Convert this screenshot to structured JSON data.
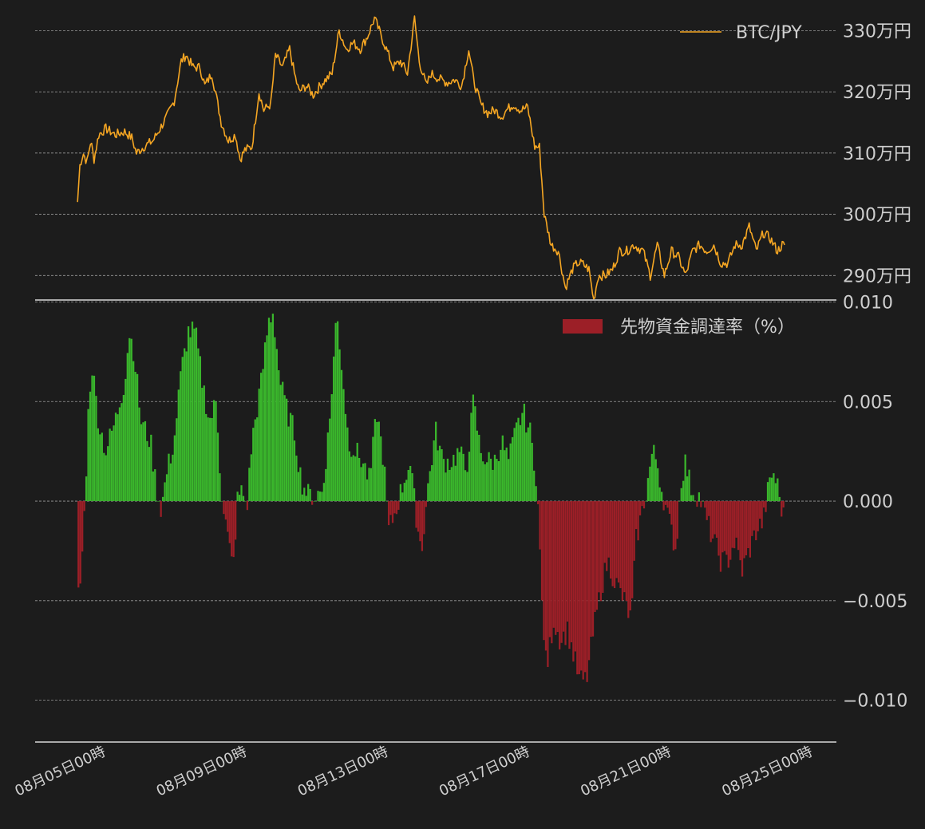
{
  "chart_data": [
    {
      "type": "line",
      "series": [
        {
          "name": "BTC/JPY",
          "color": "#f5a623",
          "anchors": [
            [
              0.0,
              3020000
            ],
            [
              0.05,
              3080000
            ],
            [
              0.12,
              3100000
            ],
            [
              0.2,
              3085000
            ],
            [
              0.28,
              3120000
            ],
            [
              0.35,
              3090000
            ],
            [
              0.45,
              3130000
            ],
            [
              0.6,
              3140000
            ],
            [
              0.8,
              3130000
            ],
            [
              1.0,
              3135000
            ],
            [
              1.15,
              3125000
            ],
            [
              1.25,
              3100000
            ],
            [
              1.4,
              3110000
            ],
            [
              1.6,
              3120000
            ],
            [
              1.75,
              3140000
            ],
            [
              1.9,
              3160000
            ],
            [
              2.05,
              3185000
            ],
            [
              2.2,
              3250000
            ],
            [
              2.3,
              3260000
            ],
            [
              2.45,
              3240000
            ],
            [
              2.6,
              3240000
            ],
            [
              2.7,
              3210000
            ],
            [
              2.85,
              3230000
            ],
            [
              3.05,
              3150000
            ],
            [
              3.2,
              3120000
            ],
            [
              3.35,
              3130000
            ],
            [
              3.45,
              3090000
            ],
            [
              3.55,
              3105000
            ],
            [
              3.7,
              3110000
            ],
            [
              3.85,
              3200000
            ],
            [
              3.95,
              3170000
            ],
            [
              4.1,
              3180000
            ],
            [
              4.2,
              3260000
            ],
            [
              4.35,
              3240000
            ],
            [
              4.5,
              3270000
            ],
            [
              4.6,
              3230000
            ],
            [
              4.7,
              3200000
            ],
            [
              4.85,
              3210000
            ],
            [
              5.0,
              3195000
            ],
            [
              5.2,
              3215000
            ],
            [
              5.4,
              3230000
            ],
            [
              5.55,
              3300000
            ],
            [
              5.7,
              3270000
            ],
            [
              5.85,
              3280000
            ],
            [
              6.0,
              3270000
            ],
            [
              6.15,
              3290000
            ],
            [
              6.3,
              3320000
            ],
            [
              6.45,
              3290000
            ],
            [
              6.55,
              3270000
            ],
            [
              6.7,
              3240000
            ],
            [
              6.85,
              3250000
            ],
            [
              7.0,
              3230000
            ],
            [
              7.15,
              3320000
            ],
            [
              7.25,
              3250000
            ],
            [
              7.4,
              3210000
            ],
            [
              7.5,
              3230000
            ],
            [
              7.7,
              3220000
            ],
            [
              7.85,
              3215000
            ],
            [
              8.0,
              3220000
            ],
            [
              8.15,
              3210000
            ],
            [
              8.3,
              3270000
            ],
            [
              8.4,
              3220000
            ],
            [
              8.55,
              3180000
            ],
            [
              8.7,
              3165000
            ],
            [
              8.85,
              3170000
            ],
            [
              9.0,
              3160000
            ],
            [
              9.1,
              3170000
            ],
            [
              9.25,
              3180000
            ],
            [
              9.4,
              3170000
            ],
            [
              9.55,
              3175000
            ],
            [
              9.7,
              3110000
            ],
            [
              9.8,
              3110000
            ],
            [
              9.9,
              3000000
            ],
            [
              10.05,
              2950000
            ],
            [
              10.2,
              2940000
            ],
            [
              10.35,
              2880000
            ],
            [
              10.5,
              2910000
            ],
            [
              10.6,
              2920000
            ],
            [
              10.7,
              2920000
            ],
            [
              10.85,
              2910000
            ],
            [
              10.95,
              2860000
            ],
            [
              11.05,
              2900000
            ],
            [
              11.2,
              2900000
            ],
            [
              11.35,
              2910000
            ],
            [
              11.5,
              2940000
            ],
            [
              11.65,
              2940000
            ],
            [
              11.8,
              2950000
            ],
            [
              12.0,
              2940000
            ],
            [
              12.15,
              2900000
            ],
            [
              12.3,
              2950000
            ],
            [
              12.45,
              2900000
            ],
            [
              12.6,
              2940000
            ],
            [
              12.75,
              2930000
            ],
            [
              12.9,
              2900000
            ],
            [
              13.05,
              2940000
            ],
            [
              13.2,
              2950000
            ],
            [
              13.35,
              2940000
            ],
            [
              13.5,
              2950000
            ],
            [
              13.65,
              2920000
            ],
            [
              13.8,
              2920000
            ],
            [
              13.95,
              2950000
            ],
            [
              14.1,
              2950000
            ],
            [
              14.25,
              2980000
            ],
            [
              14.4,
              2940000
            ],
            [
              14.55,
              2970000
            ],
            [
              14.7,
              2960000
            ],
            [
              14.85,
              2940000
            ],
            [
              14.95,
              2950000
            ],
            [
              15.0,
              2950000
            ]
          ]
        }
      ],
      "y_ticks": [
        {
          "value": 2900000,
          "label": "290万円"
        },
        {
          "value": 3000000,
          "label": "300万円"
        },
        {
          "value": 3100000,
          "label": "310万円"
        },
        {
          "value": 3200000,
          "label": "320万円"
        },
        {
          "value": 3300000,
          "label": "330万円"
        }
      ],
      "ylim": [
        2860000,
        3350000
      ],
      "grid": true,
      "legend_position": "top-right"
    },
    {
      "type": "bar",
      "series": [
        {
          "name": "先物資金調達率（%）",
          "color_negative": "#9c1f27",
          "color_positive": "#3ab72c",
          "anchors": [
            [
              0.0,
              -0.005
            ],
            [
              0.07,
              -0.004
            ],
            [
              0.13,
              -0.0015
            ],
            [
              0.17,
              0.0005
            ],
            [
              0.22,
              0.004
            ],
            [
              0.3,
              0.007
            ],
            [
              0.45,
              0.004
            ],
            [
              0.6,
              0.0025
            ],
            [
              0.8,
              0.004
            ],
            [
              1.0,
              0.006
            ],
            [
              1.1,
              0.0085
            ],
            [
              1.2,
              0.0075
            ],
            [
              1.35,
              0.004
            ],
            [
              1.55,
              0.003
            ],
            [
              1.7,
              0.0002
            ],
            [
              1.78,
              -0.0004
            ],
            [
              1.9,
              0.0015
            ],
            [
              2.05,
              0.003
            ],
            [
              2.2,
              0.0065
            ],
            [
              2.35,
              0.0085
            ],
            [
              2.5,
              0.0085
            ],
            [
              2.65,
              0.006
            ],
            [
              2.8,
              0.004
            ],
            [
              2.95,
              0.005
            ],
            [
              3.05,
              0.0005
            ],
            [
              3.2,
              -0.002
            ],
            [
              3.3,
              -0.0035
            ],
            [
              3.4,
              0.0002
            ],
            [
              3.5,
              0.0005
            ],
            [
              3.6,
              -0.0002
            ],
            [
              3.7,
              0.003
            ],
            [
              3.9,
              0.006
            ],
            [
              4.05,
              0.009
            ],
            [
              4.15,
              0.0095
            ],
            [
              4.3,
              0.006
            ],
            [
              4.45,
              0.0045
            ],
            [
              4.6,
              0.0035
            ],
            [
              4.75,
              0.001
            ],
            [
              4.9,
              0.0003
            ],
            [
              5.05,
              0.0003
            ],
            [
              5.2,
              0.0005
            ],
            [
              5.35,
              0.004
            ],
            [
              5.5,
              0.0095
            ],
            [
              5.6,
              0.007
            ],
            [
              5.75,
              0.003
            ],
            [
              5.9,
              0.0025
            ],
            [
              6.05,
              0.002
            ],
            [
              6.2,
              0.001
            ],
            [
              6.35,
              0.0045
            ],
            [
              6.5,
              0.002
            ],
            [
              6.6,
              -0.0015
            ],
            [
              6.75,
              -0.0005
            ],
            [
              6.9,
              0.0008
            ],
            [
              7.05,
              0.002
            ],
            [
              7.2,
              -0.001
            ],
            [
              7.3,
              -0.0025
            ],
            [
              7.45,
              0.001
            ],
            [
              7.6,
              0.0035
            ],
            [
              7.75,
              0.002
            ],
            [
              7.95,
              0.002
            ],
            [
              8.1,
              0.0025
            ],
            [
              8.25,
              0.0015
            ],
            [
              8.4,
              0.005
            ],
            [
              8.55,
              0.0025
            ],
            [
              8.7,
              0.002
            ],
            [
              8.85,
              0.002
            ],
            [
              9.0,
              0.003
            ],
            [
              9.15,
              0.002
            ],
            [
              9.3,
              0.0035
            ],
            [
              9.45,
              0.0045
            ],
            [
              9.6,
              0.0035
            ],
            [
              9.75,
              0.001
            ],
            [
              9.85,
              -0.005
            ],
            [
              9.95,
              -0.0085
            ],
            [
              10.1,
              -0.006
            ],
            [
              10.25,
              -0.007
            ],
            [
              10.4,
              -0.0065
            ],
            [
              10.55,
              -0.008
            ],
            [
              10.65,
              -0.009
            ],
            [
              10.8,
              -0.009
            ],
            [
              10.95,
              -0.0065
            ],
            [
              11.1,
              -0.0045
            ],
            [
              11.25,
              -0.003
            ],
            [
              11.4,
              -0.004
            ],
            [
              11.6,
              -0.005
            ],
            [
              11.75,
              -0.006
            ],
            [
              11.85,
              -0.002
            ],
            [
              12.0,
              -0.0003
            ],
            [
              12.1,
              0.001
            ],
            [
              12.2,
              0.0025
            ],
            [
              12.3,
              0.002
            ],
            [
              12.4,
              0.0005
            ],
            [
              12.5,
              -0.0005
            ],
            [
              12.6,
              -0.0015
            ],
            [
              12.7,
              -0.0025
            ],
            [
              12.8,
              0.001
            ],
            [
              12.9,
              0.002
            ],
            [
              13.0,
              0.0008
            ],
            [
              13.1,
              0.0004
            ],
            [
              13.2,
              0.0002
            ],
            [
              13.35,
              -0.001
            ],
            [
              13.5,
              -0.002
            ],
            [
              13.65,
              -0.003
            ],
            [
              13.8,
              -0.003
            ],
            [
              13.95,
              -0.002
            ],
            [
              14.1,
              -0.0035
            ],
            [
              14.25,
              -0.0025
            ],
            [
              14.4,
              -0.0015
            ],
            [
              14.55,
              -0.001
            ],
            [
              14.65,
              0.0005
            ],
            [
              14.75,
              0.0015
            ],
            [
              14.85,
              0.0008
            ],
            [
              14.95,
              -0.0005
            ],
            [
              15.0,
              -0.001
            ]
          ]
        }
      ],
      "y_ticks": [
        {
          "value": -0.01,
          "label": "−0.010"
        },
        {
          "value": -0.005,
          "label": "−0.005"
        },
        {
          "value": 0,
          "label": "0.000"
        },
        {
          "value": 0.005,
          "label": "0.005"
        },
        {
          "value": 0.01,
          "label": "0.010"
        }
      ],
      "ylim": [
        -0.0121,
        0.0101
      ],
      "grid": true,
      "legend_position": "top-right"
    }
  ],
  "x_ticks": [
    {
      "value": -0.4,
      "label": "08月05日00時"
    },
    {
      "value": 2.6,
      "label": "08月09日00時"
    },
    {
      "value": 5.6,
      "label": "08月13日00時"
    },
    {
      "value": 8.6,
      "label": "08月17日00時"
    },
    {
      "value": 11.6,
      "label": "08月21日00時"
    },
    {
      "value": 14.6,
      "label": "08月25日00時"
    }
  ],
  "xlim": [
    -0.9,
    16.1
  ]
}
